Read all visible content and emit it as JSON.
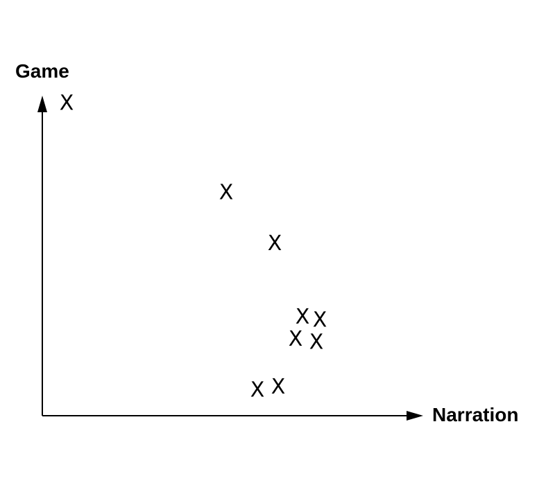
{
  "chart_data": {
    "type": "scatter",
    "title": "",
    "xlabel": "Narration",
    "ylabel": "Game",
    "marker": "X",
    "grid": false,
    "legend": "none",
    "xlim": [
      0,
      10
    ],
    "ylim": [
      0,
      10
    ],
    "points": [
      {
        "x": 0.7,
        "y": 9.8
      },
      {
        "x": 5.3,
        "y": 7.0
      },
      {
        "x": 6.7,
        "y": 5.4
      },
      {
        "x": 7.5,
        "y": 3.1
      },
      {
        "x": 8.0,
        "y": 3.0
      },
      {
        "x": 7.3,
        "y": 2.4
      },
      {
        "x": 7.9,
        "y": 2.3
      },
      {
        "x": 6.2,
        "y": 0.8
      },
      {
        "x": 6.8,
        "y": 0.9
      }
    ],
    "colors": {
      "axis": "#000000",
      "marker": "#000000"
    }
  }
}
